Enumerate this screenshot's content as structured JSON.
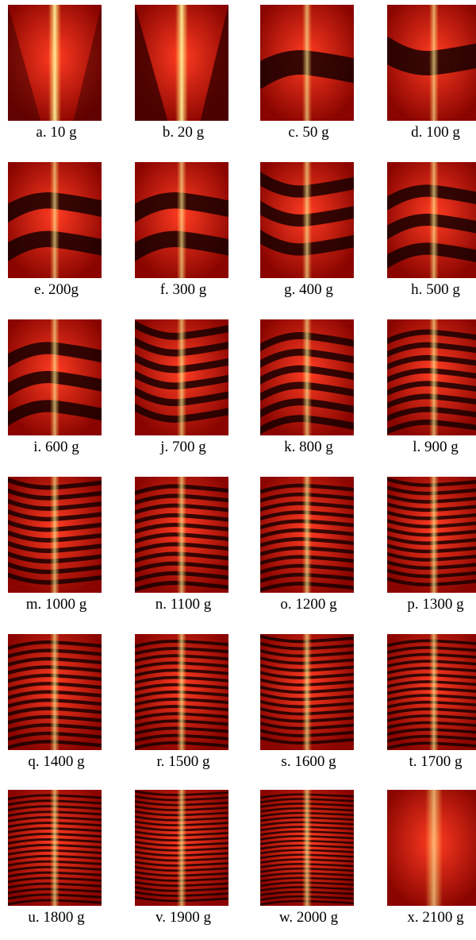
{
  "panels": [
    {
      "label": "a. 10 g",
      "mass_g": 10,
      "fringes": 0
    },
    {
      "label": "b. 20 g",
      "mass_g": 20,
      "fringes": 0
    },
    {
      "label": "c. 50 g",
      "mass_g": 50,
      "fringes": 1
    },
    {
      "label": "d. 100 g",
      "mass_g": 100,
      "fringes": 1
    },
    {
      "label": "e. 200g",
      "mass_g": 200,
      "fringes": 2
    },
    {
      "label": "f. 300 g",
      "mass_g": 300,
      "fringes": 2
    },
    {
      "label": "g. 400 g",
      "mass_g": 400,
      "fringes": 3
    },
    {
      "label": "h. 500 g",
      "mass_g": 500,
      "fringes": 3
    },
    {
      "label": "i. 600 g",
      "mass_g": 600,
      "fringes": 3
    },
    {
      "label": "j. 700 g",
      "mass_g": 700,
      "fringes": 6
    },
    {
      "label": "k. 800 g",
      "mass_g": 800,
      "fringes": 6
    },
    {
      "label": "l. 900 g",
      "mass_g": 900,
      "fringes": 8
    },
    {
      "label": "m. 1000 g",
      "mass_g": 1000,
      "fringes": 10
    },
    {
      "label": "n. 1100 g",
      "mass_g": 1100,
      "fringes": 11
    },
    {
      "label": "o.  1200 g",
      "mass_g": 1200,
      "fringes": 12
    },
    {
      "label": "p. 1300 g",
      "mass_g": 1300,
      "fringes": 13
    },
    {
      "label": "q. 1400 g",
      "mass_g": 1400,
      "fringes": 13
    },
    {
      "label": "r. 1500 g",
      "mass_g": 1500,
      "fringes": 15
    },
    {
      "label": "s. 1600 g",
      "mass_g": 1600,
      "fringes": 15
    },
    {
      "label": "t. 1700 g",
      "mass_g": 1700,
      "fringes": 16
    },
    {
      "label": "u. 1800 g",
      "mass_g": 1800,
      "fringes": 20
    },
    {
      "label": "v. 1900 g",
      "mass_g": 1900,
      "fringes": 22
    },
    {
      "label": "w. 2000 g",
      "mass_g": 2000,
      "fringes": 24
    },
    {
      "label": "x. 2100 g",
      "mass_g": 2100,
      "fringes": 0
    }
  ],
  "colors": {
    "fringe_bright": "#d81a10",
    "fringe_dark": "#170000",
    "center_line": "#ffd24a",
    "caption_text": "#000000"
  }
}
